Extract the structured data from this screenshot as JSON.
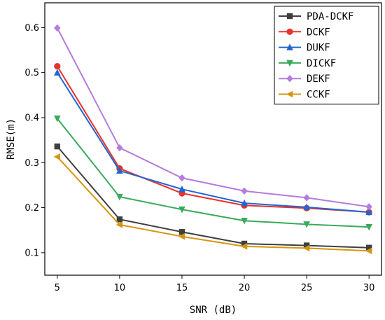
{
  "chart_data": {
    "type": "line",
    "title": "",
    "xlabel": "SNR (dB)",
    "ylabel": "RMSE(m)",
    "x": [
      5,
      10,
      15,
      20,
      25,
      30
    ],
    "xlim": [
      4,
      31
    ],
    "ylim": [
      0.05,
      0.655
    ],
    "xticks": [
      5,
      10,
      15,
      20,
      25,
      30
    ],
    "yticks": [
      0.1,
      0.2,
      0.3,
      0.4,
      0.5,
      0.6
    ],
    "grid": false,
    "legend_position": "top-right",
    "series": [
      {
        "name": "PDA-DCKF",
        "color": "#3f3f3f",
        "marker": "square",
        "values": [
          0.336,
          0.174,
          0.146,
          0.12,
          0.116,
          0.111
        ]
      },
      {
        "name": "DCKF",
        "color": "#e8322d",
        "marker": "circle",
        "values": [
          0.514,
          0.287,
          0.232,
          0.205,
          0.199,
          0.19
        ]
      },
      {
        "name": "DUKF",
        "color": "#2166d1",
        "marker": "triangle-up",
        "values": [
          0.5,
          0.282,
          0.241,
          0.21,
          0.201,
          0.19
        ]
      },
      {
        "name": "DICKF",
        "color": "#3aaa5c",
        "marker": "triangle-down",
        "values": [
          0.398,
          0.224,
          0.196,
          0.171,
          0.163,
          0.157
        ]
      },
      {
        "name": "DEKF",
        "color": "#b57bdd",
        "marker": "diamond",
        "values": [
          0.599,
          0.333,
          0.266,
          0.237,
          0.222,
          0.202
        ]
      },
      {
        "name": "CCKF",
        "color": "#d4960f",
        "marker": "triangle-left",
        "values": [
          0.313,
          0.162,
          0.136,
          0.114,
          0.11,
          0.104
        ]
      }
    ]
  }
}
